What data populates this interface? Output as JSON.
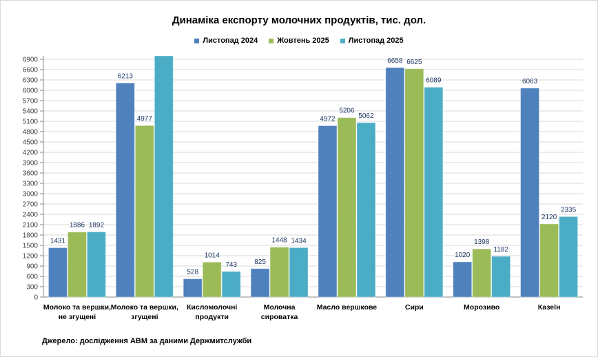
{
  "chart_data": {
    "type": "bar",
    "title": "Динаміка експорту молочних продуктів, тис. дол.",
    "categories": [
      "Молоко та вершки,\nне згущені",
      "Молоко та вершки,\nзгущені",
      "Кисломолочні\nпродукти",
      "Молочна\nсироватка",
      "Масло вершкове",
      "Сири",
      "Морозиво",
      "Казеїн"
    ],
    "series": [
      {
        "name": "Листопад 2024",
        "color": "#4f81bd",
        "values": [
          1431,
          6213,
          528,
          825,
          4972,
          6658,
          1020,
          6063
        ],
        "labels": [
          "1431",
          "6213",
          "528",
          "825",
          "4972",
          "6658",
          "1020",
          "6063"
        ]
      },
      {
        "name": "Жовтень 2025",
        "color": "#9bbb59",
        "values": [
          1886,
          4977,
          1014,
          1448,
          5206,
          6625,
          1398,
          2120
        ],
        "labels": [
          "1886",
          "4977",
          "1014",
          "1448",
          "5206",
          "6625",
          "1398",
          "2120"
        ]
      },
      {
        "name": "Листопад 2025",
        "color": "#4bacc6",
        "values": [
          1892,
          7000,
          743,
          1434,
          5062,
          6089,
          1182,
          2335
        ],
        "labels": [
          "1892",
          "",
          "743",
          "1434",
          "5062",
          "6089",
          "1182",
          "2335"
        ]
      }
    ],
    "yticks": [
      0,
      300,
      600,
      900,
      1200,
      1500,
      1800,
      2100,
      2400,
      2700,
      3000,
      3300,
      3600,
      3900,
      4200,
      4500,
      4800,
      5100,
      5400,
      5700,
      6000,
      6300,
      6600,
      6900
    ],
    "ylim": [
      0,
      7000
    ],
    "grid": true,
    "legend": "top"
  },
  "source": "Джерело: дослідження АВМ за даними Держмитслужби"
}
